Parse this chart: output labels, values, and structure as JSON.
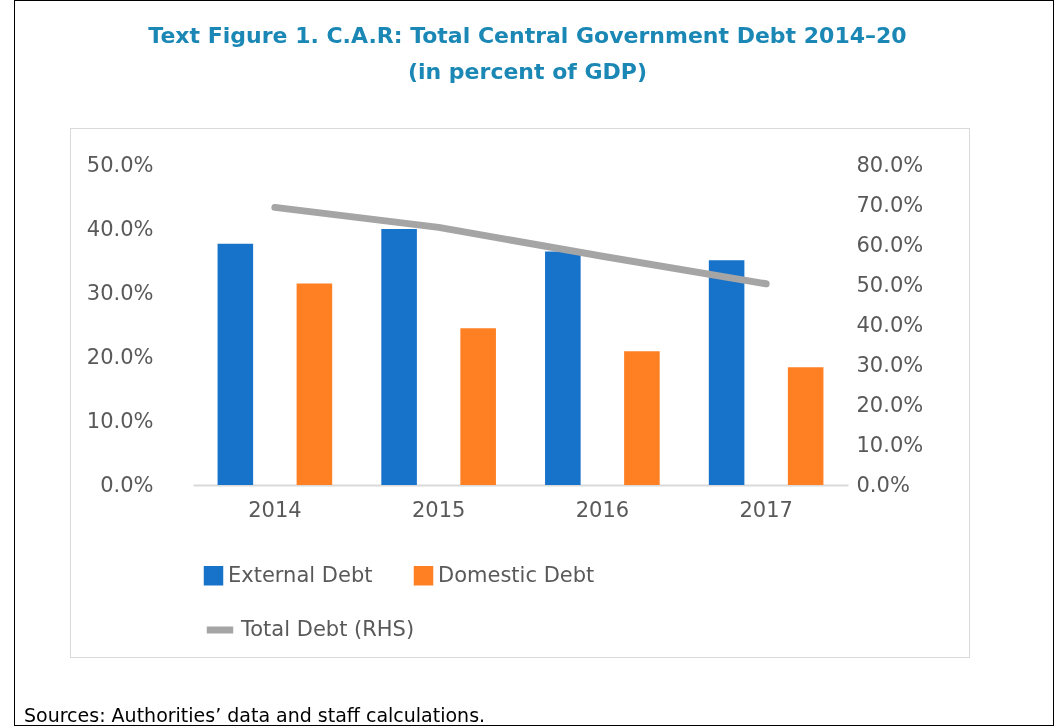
{
  "chart_data": {
    "type": "bar",
    "title": "Text Figure 1. C.A.R: Total Central Government Debt 2014–20",
    "subtitle": "(in percent of GDP)",
    "categories": [
      "2014",
      "2015",
      "2016",
      "2017"
    ],
    "series": [
      {
        "name": "External Debt",
        "color": "#1772c9",
        "values": [
          37.7,
          40.0,
          36.5,
          35.1
        ]
      },
      {
        "name": "Domestic Debt",
        "color": "#ff7f23",
        "values": [
          31.5,
          24.5,
          20.9,
          18.4
        ]
      },
      {
        "name": "Total Debt (RHS)",
        "type": "line",
        "axis": "y2",
        "color": "#a5a5a5",
        "values": [
          69.4,
          64.4,
          57.2,
          50.3
        ]
      }
    ],
    "ylim": [
      0,
      50
    ],
    "yticks": [
      {
        "value": 0,
        "label": "0.0%"
      },
      {
        "value": 10,
        "label": "10.0%"
      },
      {
        "value": 20,
        "label": "20.0%"
      },
      {
        "value": 30,
        "label": "30.0%"
      },
      {
        "value": 40,
        "label": "40.0%"
      },
      {
        "value": 50,
        "label": "50.0%"
      }
    ],
    "y2lim": [
      0,
      80
    ],
    "y2ticks": [
      {
        "value": 0,
        "label": "0.0%"
      },
      {
        "value": 10,
        "label": "10.0%"
      },
      {
        "value": 20,
        "label": "20.0%"
      },
      {
        "value": 30,
        "label": "30.0%"
      },
      {
        "value": 40,
        "label": "40.0%"
      },
      {
        "value": 50,
        "label": "50.0%"
      },
      {
        "value": 60,
        "label": "60.0%"
      },
      {
        "value": 70,
        "label": "70.0%"
      },
      {
        "value": 80,
        "label": "80.0%"
      }
    ],
    "grid": false,
    "legend": "bottom",
    "marker": "none",
    "annotations": [
      "Sources: Authorities’ data and staff calculations."
    ]
  }
}
